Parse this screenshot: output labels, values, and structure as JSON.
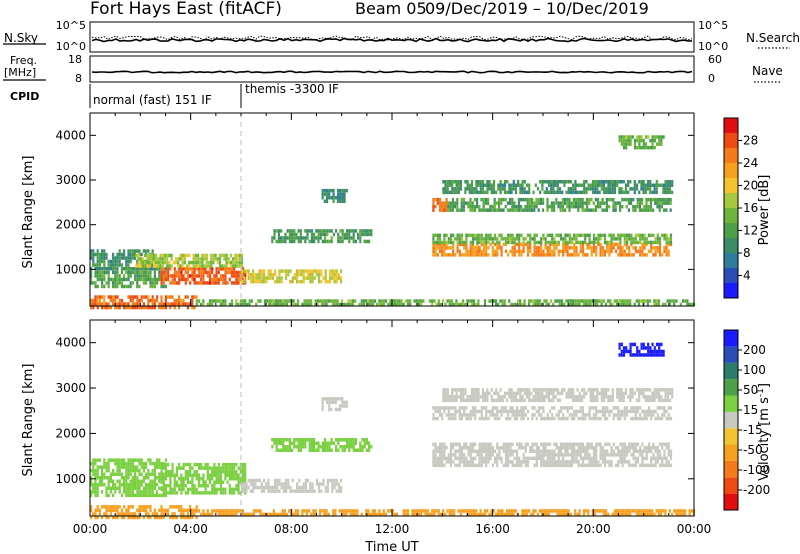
{
  "header": {
    "station": "Fort Hays East (fitACF)",
    "beam": "Beam 05",
    "date_range": "09/Dec/2019 – 10/Dec/2019"
  },
  "top_panels": {
    "nsky": {
      "label": "N.Sky",
      "ticks": [
        "10^5",
        "10^0"
      ],
      "right_ticks": [
        "10^5",
        "10^0"
      ],
      "right_label": "N.Search",
      "right_legend_line": "dotted"
    },
    "freq": {
      "label_line1": "Freq.",
      "label_line2": "[MHz]",
      "ticks": [
        18,
        8
      ],
      "right_ticks": [
        60,
        0
      ],
      "right_label": "Nave",
      "right_legend_line": "dotted"
    },
    "cpid": {
      "label": "CPID",
      "segments": [
        {
          "start_hour": 0,
          "end_hour": 6,
          "text": "normal (fast) 151 IF"
        },
        {
          "start_hour": 6,
          "end_hour": 24,
          "text": "themis -3300 IF"
        }
      ]
    }
  },
  "chart_data": [
    {
      "type": "heatmap",
      "name": "power",
      "ylabel": "Slant Range [km]",
      "xlabel": "",
      "xlim": [
        0,
        24
      ],
      "ylim": [
        180,
        4500
      ],
      "yticks": [
        1000,
        2000,
        3000,
        4000
      ],
      "colorbar": {
        "label": "Power [dB]",
        "range": [
          0,
          32
        ],
        "ticks": [
          4,
          8,
          12,
          16,
          20,
          24,
          28
        ],
        "colors": [
          "#1a1aff",
          "#2a4eb8",
          "#2e7d9e",
          "#3c8c6a",
          "#4ea048",
          "#6cb43c",
          "#a6c83c",
          "#f4c430",
          "#f6a020",
          "#f47a1a",
          "#f04a14",
          "#e01010"
        ]
      },
      "regions": [
        {
          "t0": 0.0,
          "t1": 4.2,
          "r0": 180,
          "r1": 420,
          "v": 26
        },
        {
          "t0": 4.2,
          "t1": 24.0,
          "r0": 180,
          "r1": 330,
          "v": 14
        },
        {
          "t0": 0.0,
          "t1": 3.0,
          "r0": 600,
          "r1": 1050,
          "v": 12
        },
        {
          "t0": 0.0,
          "t1": 2.5,
          "r0": 1050,
          "r1": 1450,
          "v": 10
        },
        {
          "t0": 2.8,
          "t1": 6.2,
          "r0": 700,
          "r1": 1050,
          "v": 27
        },
        {
          "t0": 1.8,
          "t1": 6.0,
          "r0": 1050,
          "r1": 1350,
          "v": 17
        },
        {
          "t0": 6.0,
          "t1": 10.0,
          "r0": 750,
          "r1": 1000,
          "v": 19
        },
        {
          "t0": 7.2,
          "t1": 11.2,
          "r0": 1650,
          "r1": 1900,
          "v": 11
        },
        {
          "t0": 9.2,
          "t1": 10.2,
          "r0": 2500,
          "r1": 2800,
          "v": 9
        },
        {
          "t0": 13.6,
          "t1": 23.1,
          "r0": 1300,
          "r1": 1600,
          "v": 24
        },
        {
          "t0": 13.6,
          "t1": 23.1,
          "r0": 1600,
          "r1": 1800,
          "v": 14
        },
        {
          "t0": 13.6,
          "t1": 14.2,
          "r0": 2300,
          "r1": 2600,
          "v": 26
        },
        {
          "t0": 14.2,
          "t1": 23.1,
          "r0": 2300,
          "r1": 2600,
          "v": 12
        },
        {
          "t0": 14.0,
          "t1": 23.1,
          "r0": 2700,
          "r1": 3000,
          "v": 10
        },
        {
          "t0": 21.0,
          "t1": 22.8,
          "r0": 3700,
          "r1": 4000,
          "v": 14
        }
      ]
    },
    {
      "type": "heatmap",
      "name": "velocity",
      "ylabel": "Slant Range [km]",
      "xlabel": "Time UT",
      "xlim": [
        0,
        24
      ],
      "ylim": [
        180,
        4500
      ],
      "xticks": [
        "00:00",
        "04:00",
        "08:00",
        "12:00",
        "16:00",
        "20:00",
        "00:00"
      ],
      "yticks": [
        1000,
        2000,
        3000,
        4000
      ],
      "colorbar": {
        "label": "Velocity [m s",
        "label_sup": "-1",
        "label_end": "]",
        "ticks": [
          "-200",
          "-100",
          "-50",
          "-15",
          "15",
          "50",
          "100",
          "200"
        ],
        "colors": [
          "#e01010",
          "#f04a14",
          "#f47a1a",
          "#f6a020",
          "#f4c430",
          "#c8c8c0",
          "#7ad040",
          "#4ea048",
          "#2e7d6a",
          "#2a4eb8",
          "#1a1aff"
        ]
      },
      "regions": [
        {
          "t0": 0.0,
          "t1": 4.2,
          "r0": 180,
          "r1": 420,
          "v": -25
        },
        {
          "t0": 4.2,
          "t1": 24.0,
          "r0": 180,
          "r1": 330,
          "v": -40
        },
        {
          "t0": 0.0,
          "t1": 3.0,
          "r0": 600,
          "r1": 1450,
          "v": 40
        },
        {
          "t0": 2.8,
          "t1": 6.2,
          "r0": 700,
          "r1": 1350,
          "v": 30
        },
        {
          "t0": 6.0,
          "t1": 10.0,
          "r0": 750,
          "r1": 1000,
          "v": 0
        },
        {
          "t0": 7.2,
          "t1": 11.2,
          "r0": 1650,
          "r1": 1900,
          "v": 35
        },
        {
          "t0": 9.2,
          "t1": 10.2,
          "r0": 2500,
          "r1": 2800,
          "v": 0
        },
        {
          "t0": 13.6,
          "t1": 23.1,
          "r0": 1300,
          "r1": 1800,
          "v": 0
        },
        {
          "t0": 13.6,
          "t1": 23.1,
          "r0": 2300,
          "r1": 2600,
          "v": 0
        },
        {
          "t0": 14.0,
          "t1": 23.1,
          "r0": 2700,
          "r1": 3000,
          "v": 0
        },
        {
          "t0": 21.0,
          "t1": 22.8,
          "r0": 3700,
          "r1": 4000,
          "v": 220
        }
      ]
    }
  ]
}
